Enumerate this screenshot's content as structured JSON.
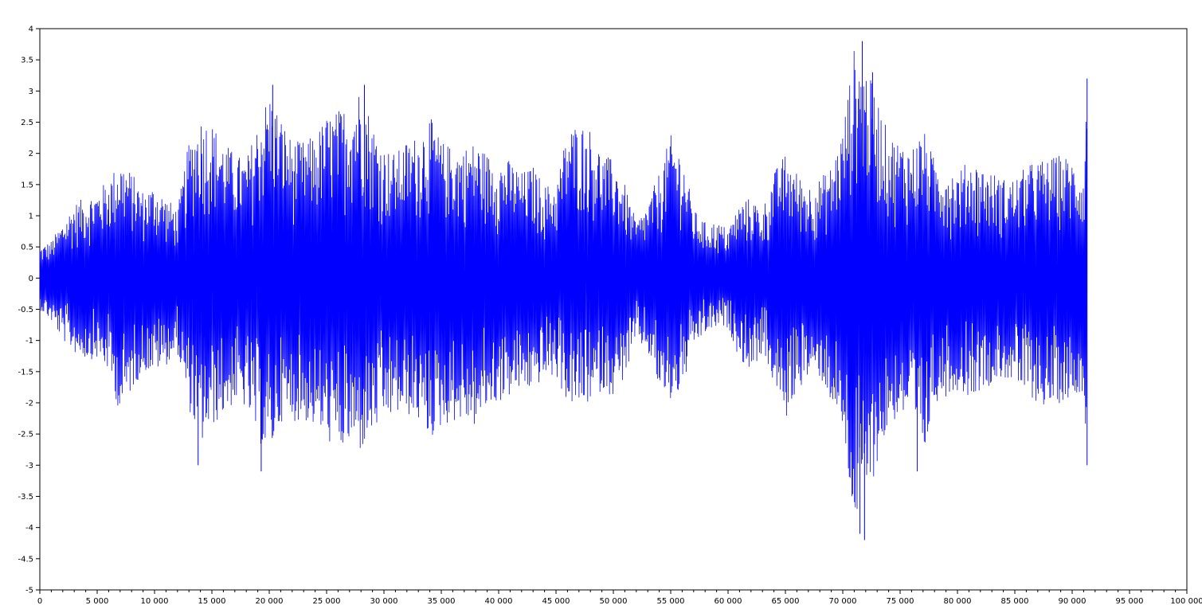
{
  "chart_data": {
    "type": "line",
    "title": "",
    "xlabel": "",
    "ylabel": "",
    "xlim": [
      0,
      100000
    ],
    "ylim": [
      -5,
      4
    ],
    "grid": false,
    "x_ticks": [
      0,
      5000,
      10000,
      15000,
      20000,
      25000,
      30000,
      35000,
      40000,
      45000,
      50000,
      55000,
      60000,
      65000,
      70000,
      75000,
      80000,
      85000,
      90000,
      95000,
      100000
    ],
    "x_tick_labels": [
      "0",
      "5 000",
      "10 000",
      "15 000",
      "20 000",
      "25 000",
      "30 000",
      "35 000",
      "40 000",
      "45 000",
      "50 000",
      "55 000",
      "60 000",
      "65 000",
      "70 000",
      "75 000",
      "80 000",
      "85 000",
      "90 000",
      "95 000",
      "100 000"
    ],
    "y_ticks": [
      4,
      3.5,
      3,
      2.5,
      2,
      1.5,
      1,
      0.5,
      0,
      -0.5,
      -1,
      -1.5,
      -2,
      -2.5,
      -3,
      -3.5,
      -4,
      -4.5,
      -5
    ],
    "y_tick_labels": [
      "4",
      "3.5",
      "3",
      "2.5",
      "2",
      "1.5",
      "1",
      "0.5",
      "0",
      "-0.5",
      "-1",
      "-1.5",
      "-2",
      "-2.5",
      "-3",
      "-3.5",
      "-4",
      "-4.5",
      "-5"
    ],
    "series": [
      {
        "color": "#0000ff",
        "x_end": 91300,
        "envelope_x": [
          0,
          1000,
          2000,
          3000,
          4000,
          5000,
          6000,
          7000,
          8000,
          9000,
          10000,
          11000,
          12000,
          13000,
          14000,
          15000,
          16000,
          17000,
          18000,
          19000,
          20000,
          21000,
          22000,
          23000,
          24000,
          25000,
          26000,
          27000,
          28000,
          29000,
          30000,
          31000,
          32000,
          33000,
          34000,
          35000,
          36000,
          37000,
          38000,
          39000,
          40000,
          41000,
          42000,
          43000,
          44000,
          45000,
          46000,
          47000,
          48000,
          49000,
          50000,
          51000,
          52000,
          53000,
          54000,
          55000,
          56000,
          57000,
          58000,
          59000,
          60000,
          61000,
          62000,
          63000,
          64000,
          65000,
          66000,
          67000,
          68000,
          69000,
          70000,
          71000,
          72000,
          73000,
          74000,
          75000,
          76000,
          77000,
          78000,
          79000,
          80000,
          81000,
          82000,
          83000,
          84000,
          85000,
          86000,
          87000,
          88000,
          89000,
          90000,
          91000,
          91300
        ],
        "envelope_max": [
          0.5,
          0.6,
          0.9,
          1.2,
          1.3,
          1.4,
          1.6,
          1.9,
          1.7,
          1.4,
          1.5,
          1.3,
          1.1,
          2.2,
          2.6,
          2.5,
          2.2,
          2.0,
          1.9,
          2.5,
          3.0,
          2.6,
          2.2,
          2.2,
          2.3,
          2.6,
          2.7,
          2.8,
          3.1,
          2.5,
          2.1,
          2.0,
          2.2,
          2.3,
          2.6,
          2.2,
          2.1,
          2.1,
          2.2,
          2.0,
          1.9,
          1.9,
          1.7,
          1.8,
          1.5,
          1.5,
          2.4,
          2.5,
          2.4,
          2.0,
          1.9,
          1.5,
          0.9,
          1.2,
          1.7,
          2.3,
          2.0,
          1.1,
          0.9,
          0.9,
          0.8,
          1.2,
          1.3,
          1.1,
          1.7,
          2.0,
          1.7,
          1.5,
          1.6,
          1.8,
          2.4,
          3.7,
          3.4,
          2.9,
          2.3,
          2.2,
          2.1,
          2.4,
          1.9,
          1.8,
          1.7,
          1.9,
          1.8,
          1.7,
          1.6,
          1.6,
          1.8,
          1.9,
          1.9,
          2.0,
          1.9,
          1.7,
          3.2
        ],
        "envelope_min": [
          -0.5,
          -0.7,
          -1.0,
          -1.2,
          -1.3,
          -1.3,
          -1.5,
          -2.2,
          -1.8,
          -1.5,
          -1.5,
          -1.4,
          -1.2,
          -2.1,
          -2.7,
          -2.4,
          -2.2,
          -2.0,
          -2.1,
          -2.6,
          -2.9,
          -2.3,
          -2.3,
          -2.3,
          -2.4,
          -2.6,
          -2.8,
          -2.7,
          -2.8,
          -2.5,
          -2.3,
          -2.2,
          -2.2,
          -2.3,
          -2.6,
          -2.4,
          -2.3,
          -2.3,
          -2.4,
          -2.1,
          -2.0,
          -1.9,
          -1.8,
          -1.8,
          -1.6,
          -1.6,
          -2.0,
          -2.1,
          -2.0,
          -1.8,
          -1.9,
          -1.6,
          -1.0,
          -1.2,
          -1.8,
          -2.0,
          -1.8,
          -1.1,
          -0.9,
          -0.8,
          -0.8,
          -1.3,
          -1.5,
          -1.2,
          -1.7,
          -2.3,
          -1.8,
          -1.6,
          -1.6,
          -2.0,
          -2.5,
          -4.0,
          -3.6,
          -3.0,
          -2.4,
          -2.2,
          -2.3,
          -3.0,
          -2.0,
          -1.9,
          -1.8,
          -1.9,
          -1.8,
          -1.7,
          -1.6,
          -1.7,
          -1.9,
          -2.0,
          -2.1,
          -2.0,
          -1.9,
          -1.8,
          -3.0
        ],
        "peaks": [
          {
            "x": 71700,
            "y": 3.8
          },
          {
            "x": 71900,
            "y": -4.2
          },
          {
            "x": 71500,
            "y": -4.1
          },
          {
            "x": 91300,
            "y": 3.2
          },
          {
            "x": 91300,
            "y": -3.0
          },
          {
            "x": 28300,
            "y": 3.1
          },
          {
            "x": 20300,
            "y": 3.1
          },
          {
            "x": 19300,
            "y": -3.1
          },
          {
            "x": 13800,
            "y": -3.0
          },
          {
            "x": 76500,
            "y": -3.1
          },
          {
            "x": 72600,
            "y": 3.3
          }
        ]
      }
    ]
  }
}
